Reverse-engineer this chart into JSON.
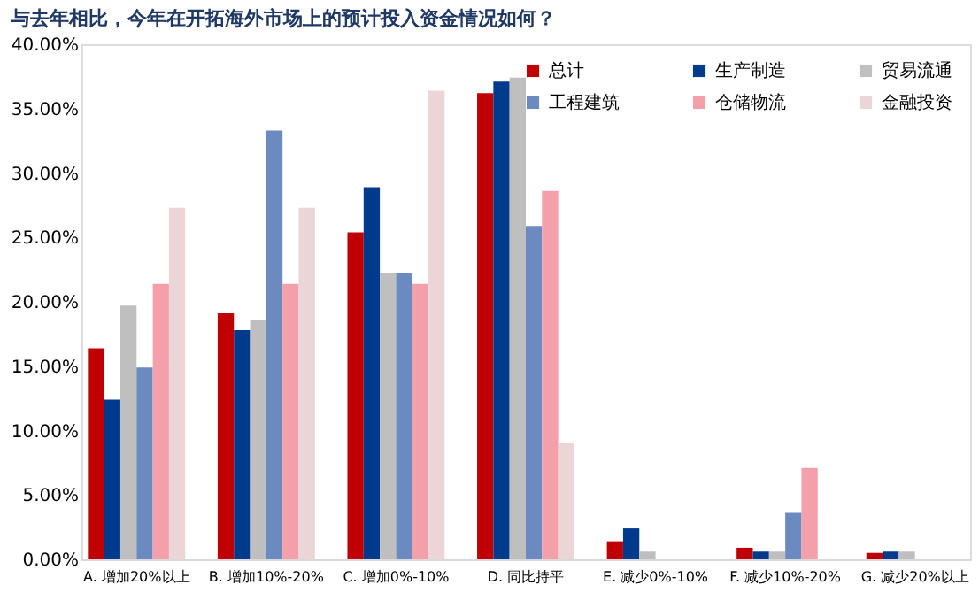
{
  "chart_data": {
    "type": "bar",
    "title": "与去年相比，今年在开拓海外市场上的预计投入资金情况如何？",
    "categories": [
      "A.  增加20%以上",
      "B.  增加10%-20%",
      "C.  增加0%-10%",
      "D.  同比持平",
      "E.  减少0%-10%",
      "F.  减少10%-20%",
      "G.  减少20%以上"
    ],
    "series": [
      {
        "name": "总计",
        "color": "#c00000",
        "values": [
          16.4,
          19.1,
          25.4,
          36.2,
          1.4,
          0.9,
          0.5
        ]
      },
      {
        "name": "生产制造",
        "color": "#003a8c",
        "values": [
          12.4,
          17.8,
          28.9,
          37.1,
          2.4,
          0.6,
          0.6
        ]
      },
      {
        "name": "贸易流通",
        "color": "#bfbfbf",
        "values": [
          19.7,
          18.6,
          22.2,
          37.4,
          0.6,
          0.6,
          0.6
        ]
      },
      {
        "name": "工程建筑",
        "color": "#6a8ac0",
        "values": [
          14.9,
          33.3,
          22.2,
          25.9,
          null,
          3.6,
          null
        ]
      },
      {
        "name": "仓储物流",
        "color": "#f4a0aa",
        "values": [
          21.4,
          21.4,
          21.4,
          28.6,
          null,
          7.1,
          null
        ]
      },
      {
        "name": "金融投资",
        "color": "#ecd5d7",
        "values": [
          27.3,
          27.3,
          36.4,
          9.0,
          null,
          null,
          null
        ]
      }
    ],
    "ylim": [
      0,
      40
    ],
    "yticks": [
      {
        "value": 0,
        "label": "0.00%"
      },
      {
        "value": 5,
        "label": "5.00%"
      },
      {
        "value": 10,
        "label": "10.00%"
      },
      {
        "value": 15,
        "label": "15.00%"
      },
      {
        "value": 20,
        "label": "20.00%"
      },
      {
        "value": 25,
        "label": "25.00%"
      },
      {
        "value": 30,
        "label": "30.00%"
      },
      {
        "value": 35,
        "label": "35.00%"
      },
      {
        "value": 40,
        "label": "40.00%"
      }
    ],
    "legend": "top right",
    "grid": false
  }
}
